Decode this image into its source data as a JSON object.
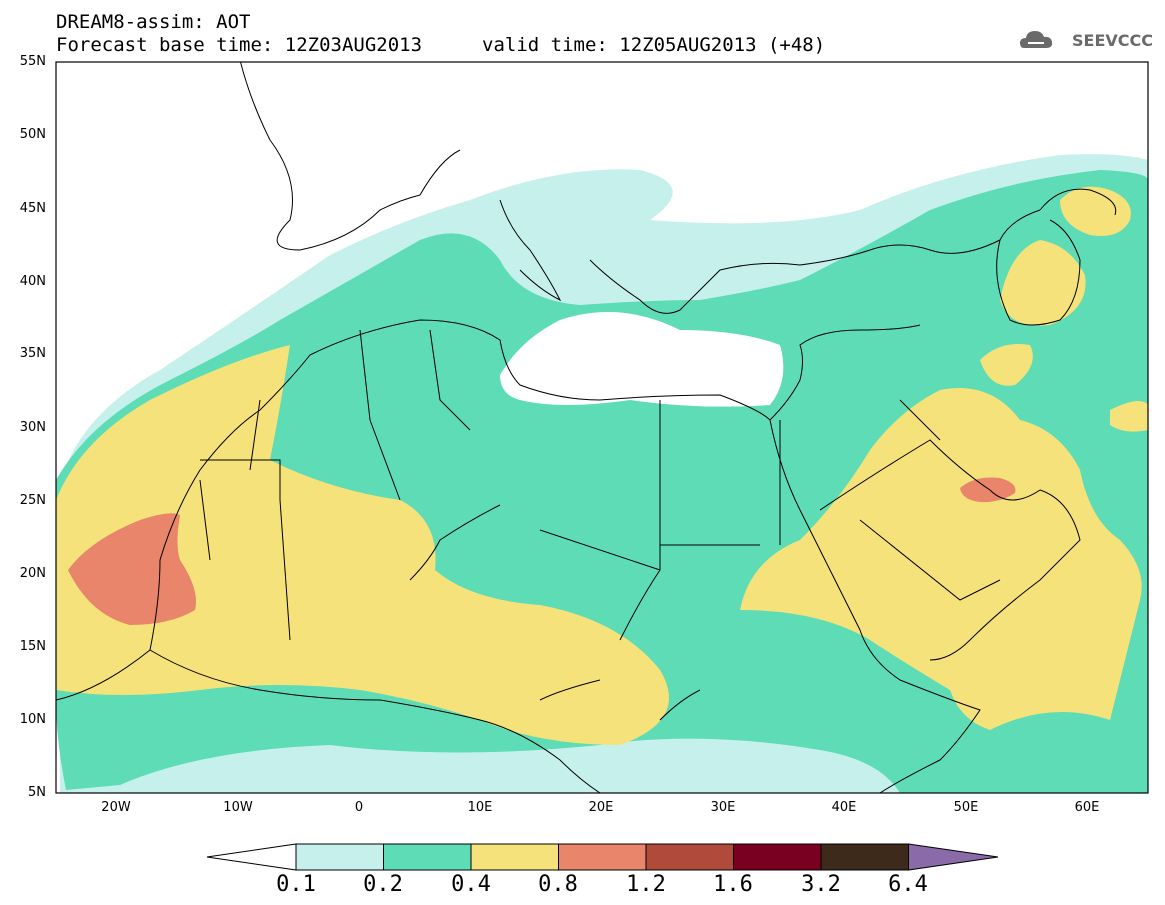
{
  "header": {
    "line1": "DREAM8-assim: AOT",
    "line2": "Forecast base time: 12Z03AUG2013",
    "line3": "valid time: 12Z05AUG2013 (+48)"
  },
  "logo": {
    "text": "SEEVCCC",
    "icon": "cloud-icon"
  },
  "axes": {
    "lat_labels": [
      "55N",
      "50N",
      "45N",
      "40N",
      "35N",
      "30N",
      "25N",
      "20N",
      "15N",
      "10N",
      "5N"
    ],
    "lon_labels": [
      "20W",
      "10W",
      "0",
      "10E",
      "20E",
      "30E",
      "40E",
      "50E",
      "60E"
    ]
  },
  "colorbar": {
    "labels": [
      "0.1",
      "0.2",
      "0.4",
      "0.8",
      "1.2",
      "1.6",
      "3.2",
      "6.4"
    ],
    "colors": [
      "#ffffff",
      "#c6f0ec",
      "#5ddcb6",
      "#f5e27a",
      "#e8856a",
      "#b04a3a",
      "#7a0022",
      "#3e2a1a",
      "#8a6aa8"
    ]
  },
  "map_colors": {
    "c1": "#c6f0ec",
    "c2": "#5ddcb6",
    "c3": "#f5e27a",
    "c4": "#e8856a",
    "c5": "#c4584a"
  }
}
